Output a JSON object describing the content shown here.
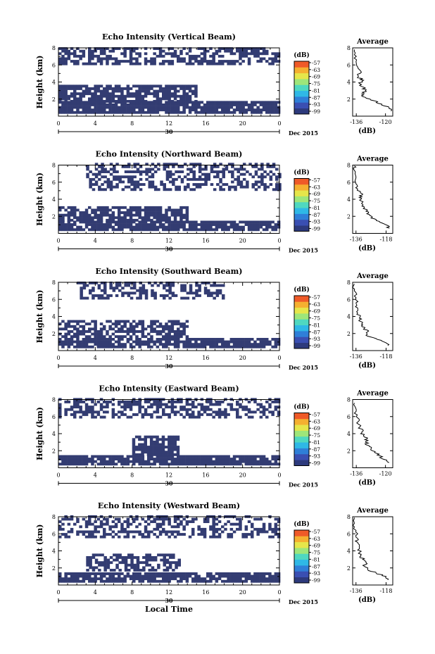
{
  "chart_data": {
    "type": "heatmap",
    "panels": [
      {
        "title": "Echo Intensity (Vertical Beam)",
        "ylabel": "Height (km)",
        "yticks": [
          "2",
          "4",
          "6",
          "8"
        ],
        "xticks": [
          "0",
          "4",
          "8",
          "12",
          "16",
          "20",
          "0"
        ],
        "date_label": "30",
        "month_label": "Dec 2015",
        "colorbar_unit": "(dB)",
        "colorbar_ticks": [
          "-57",
          "-63",
          "-69",
          "-75",
          "-81",
          "-87",
          "-93",
          "-99"
        ],
        "avg_title": "Average",
        "avg_xticks": [
          "-136",
          "-120"
        ],
        "avg_xlabel": "(dB)",
        "avg_yticks": [
          "2",
          "4",
          "6",
          "8"
        ],
        "avg_xlim": [
          -138,
          -116
        ],
        "bands": [
          {
            "start": 0,
            "end": 24,
            "bottom": 0.3,
            "top": 1.6,
            "density": 0.9
          },
          {
            "start": 0,
            "end": 15,
            "bottom": 1.6,
            "top": 3.4,
            "density": 0.8
          },
          {
            "start": 0,
            "end": 24,
            "bottom": 6.0,
            "top": 8.0,
            "density": 0.55
          }
        ],
        "profile": [
          {
            "h": 0.6,
            "db": -117
          },
          {
            "h": 1.0,
            "db": -118
          },
          {
            "h": 1.4,
            "db": -122
          },
          {
            "h": 1.8,
            "db": -126
          },
          {
            "h": 2.2,
            "db": -131
          },
          {
            "h": 2.6,
            "db": -133
          },
          {
            "h": 3.0,
            "db": -131
          },
          {
            "h": 3.4,
            "db": -132
          },
          {
            "h": 3.8,
            "db": -134
          },
          {
            "h": 4.2,
            "db": -132
          },
          {
            "h": 4.6,
            "db": -135
          },
          {
            "h": 5.0,
            "db": -134
          },
          {
            "h": 5.6,
            "db": -135
          },
          {
            "h": 6.2,
            "db": -136
          },
          {
            "h": 7.0,
            "db": -136
          },
          {
            "h": 7.8,
            "db": -137
          }
        ]
      },
      {
        "title": "Echo Intensity (Northward Beam)",
        "ylabel": "Height (km)",
        "yticks": [
          "2",
          "4",
          "6",
          "8"
        ],
        "xticks": [
          "0",
          "4",
          "8",
          "12",
          "16",
          "20",
          "0"
        ],
        "date_label": "30",
        "month_label": "Dec 2015",
        "colorbar_unit": "(dB)",
        "colorbar_ticks": [
          "-57",
          "-63",
          "-69",
          "-75",
          "-81",
          "-87",
          "-93",
          "-99"
        ],
        "avg_title": "Average",
        "avg_xticks": [
          "-136",
          "-118"
        ],
        "avg_xlabel": "(dB)",
        "avg_yticks": [
          "2",
          "4",
          "6",
          "8"
        ],
        "avg_xlim": [
          -138,
          -114
        ],
        "bands": [
          {
            "start": 0,
            "end": 24,
            "bottom": 0.3,
            "top": 1.4,
            "density": 0.85
          },
          {
            "start": 0,
            "end": 14,
            "bottom": 1.4,
            "top": 2.9,
            "density": 0.75
          },
          {
            "start": 3,
            "end": 24,
            "bottom": 5.0,
            "top": 8.0,
            "density": 0.5
          }
        ],
        "profile": [
          {
            "h": 0.6,
            "db": -116
          },
          {
            "h": 1.0,
            "db": -118
          },
          {
            "h": 1.4,
            "db": -122
          },
          {
            "h": 1.8,
            "db": -127
          },
          {
            "h": 2.2,
            "db": -128
          },
          {
            "h": 2.6,
            "db": -130
          },
          {
            "h": 3.0,
            "db": -131
          },
          {
            "h": 3.4,
            "db": -132
          },
          {
            "h": 3.8,
            "db": -133
          },
          {
            "h": 4.2,
            "db": -134
          },
          {
            "h": 4.6,
            "db": -132
          },
          {
            "h": 5.2,
            "db": -135
          },
          {
            "h": 5.8,
            "db": -136
          },
          {
            "h": 6.6,
            "db": -136
          },
          {
            "h": 7.4,
            "db": -137
          },
          {
            "h": 7.9,
            "db": -137
          }
        ]
      },
      {
        "title": "Echo Intensity (Southward Beam)",
        "ylabel": "Height (km)",
        "yticks": [
          "2",
          "4",
          "6",
          "8"
        ],
        "xticks": [
          "0",
          "4",
          "8",
          "12",
          "16",
          "20",
          "0"
        ],
        "date_label": "30",
        "month_label": "Dec 2015",
        "colorbar_unit": "(dB)",
        "colorbar_ticks": [
          "-57",
          "-63",
          "-69",
          "-75",
          "-81",
          "-87",
          "-93",
          "-99"
        ],
        "avg_title": "Average",
        "avg_xticks": [
          "-136",
          "-118"
        ],
        "avg_xlabel": "(dB)",
        "avg_yticks": [
          "2",
          "4",
          "6",
          "8"
        ],
        "avg_xlim": [
          -138,
          -114
        ],
        "bands": [
          {
            "start": 0,
            "end": 24,
            "bottom": 0.3,
            "top": 1.3,
            "density": 0.85
          },
          {
            "start": 0,
            "end": 14,
            "bottom": 1.5,
            "top": 3.3,
            "density": 0.6
          },
          {
            "start": 2,
            "end": 18,
            "bottom": 6.0,
            "top": 8.0,
            "density": 0.5
          }
        ],
        "profile": [
          {
            "h": 0.6,
            "db": -117
          },
          {
            "h": 1.0,
            "db": -119
          },
          {
            "h": 1.4,
            "db": -124
          },
          {
            "h": 1.8,
            "db": -130
          },
          {
            "h": 2.2,
            "db": -129
          },
          {
            "h": 2.6,
            "db": -131
          },
          {
            "h": 3.0,
            "db": -132
          },
          {
            "h": 3.4,
            "db": -133
          },
          {
            "h": 3.8,
            "db": -134
          },
          {
            "h": 4.4,
            "db": -135
          },
          {
            "h": 5.0,
            "db": -135
          },
          {
            "h": 5.6,
            "db": -136
          },
          {
            "h": 6.2,
            "db": -136
          },
          {
            "h": 7.0,
            "db": -137
          },
          {
            "h": 7.8,
            "db": -137
          }
        ]
      },
      {
        "title": "Echo Intensity (Eastward Beam)",
        "ylabel": "Height (km)",
        "yticks": [
          "2",
          "4",
          "6",
          "8"
        ],
        "xticks": [
          "0",
          "4",
          "8",
          "12",
          "16",
          "20",
          "0"
        ],
        "date_label": "30",
        "month_label": "Dec 2015",
        "colorbar_unit": "(dB)",
        "colorbar_ticks": [
          "-57",
          "-63",
          "-69",
          "-75",
          "-81",
          "-87",
          "-93",
          "-99"
        ],
        "avg_title": "Average",
        "avg_xticks": [
          "-136",
          "-120"
        ],
        "avg_xlabel": "(dB)",
        "avg_yticks": [
          "2",
          "4",
          "6",
          "8"
        ],
        "avg_xlim": [
          -138,
          -116
        ],
        "bands": [
          {
            "start": 0,
            "end": 24,
            "bottom": 0.3,
            "top": 1.4,
            "density": 0.9
          },
          {
            "start": 8,
            "end": 13,
            "bottom": 1.4,
            "top": 3.5,
            "density": 0.8
          },
          {
            "start": 0,
            "end": 24,
            "bottom": 5.8,
            "top": 8.0,
            "density": 0.5
          }
        ],
        "profile": [
          {
            "h": 0.6,
            "db": -118
          },
          {
            "h": 1.0,
            "db": -121
          },
          {
            "h": 1.4,
            "db": -123
          },
          {
            "h": 1.8,
            "db": -126
          },
          {
            "h": 2.2,
            "db": -128
          },
          {
            "h": 2.6,
            "db": -129
          },
          {
            "h": 3.0,
            "db": -131
          },
          {
            "h": 3.4,
            "db": -130
          },
          {
            "h": 3.8,
            "db": -132
          },
          {
            "h": 4.2,
            "db": -133
          },
          {
            "h": 4.8,
            "db": -134
          },
          {
            "h": 5.4,
            "db": -135
          },
          {
            "h": 6.0,
            "db": -136
          },
          {
            "h": 6.8,
            "db": -136
          },
          {
            "h": 7.6,
            "db": -137
          }
        ]
      },
      {
        "title": "Echo Intensity (Westward Beam)",
        "ylabel": "Height (km)",
        "yticks": [
          "2",
          "4",
          "6",
          "8"
        ],
        "xticks": [
          "0",
          "4",
          "8",
          "12",
          "16",
          "20",
          "0"
        ],
        "date_label": "30",
        "month_label": "Dec 2015",
        "xlabel": "Local Time",
        "colorbar_unit": "(dB)",
        "colorbar_ticks": [
          "-57",
          "-63",
          "-69",
          "-75",
          "-81",
          "-87",
          "-93",
          "-99"
        ],
        "avg_title": "Average",
        "avg_xticks": [
          "-136",
          "-118"
        ],
        "avg_xlabel": "(dB)",
        "avg_yticks": [
          "2",
          "4",
          "6",
          "8"
        ],
        "avg_xlim": [
          -138,
          -114
        ],
        "bands": [
          {
            "start": 0,
            "end": 24,
            "bottom": 0.3,
            "top": 1.4,
            "density": 0.85
          },
          {
            "start": 3,
            "end": 13,
            "bottom": 1.6,
            "top": 3.4,
            "density": 0.6
          },
          {
            "start": 0,
            "end": 24,
            "bottom": 5.5,
            "top": 8.0,
            "density": 0.45
          }
        ],
        "profile": [
          {
            "h": 0.6,
            "db": -117
          },
          {
            "h": 1.0,
            "db": -118
          },
          {
            "h": 1.4,
            "db": -124
          },
          {
            "h": 1.8,
            "db": -129
          },
          {
            "h": 2.2,
            "db": -131
          },
          {
            "h": 2.6,
            "db": -130
          },
          {
            "h": 3.0,
            "db": -132
          },
          {
            "h": 3.4,
            "db": -133
          },
          {
            "h": 3.8,
            "db": -134
          },
          {
            "h": 4.4,
            "db": -134
          },
          {
            "h": 5.0,
            "db": -135
          },
          {
            "h": 5.6,
            "db": -136
          },
          {
            "h": 6.4,
            "db": -136
          },
          {
            "h": 7.2,
            "db": -137
          },
          {
            "h": 7.9,
            "db": -137
          }
        ]
      }
    ],
    "ylim": [
      0,
      8
    ],
    "xlim": [
      0,
      24
    ],
    "colormap": [
      "#2d3a7c",
      "#3a4fb2",
      "#2f7fd8",
      "#2fb8e6",
      "#4fd8c0",
      "#9ee67a",
      "#e6e64a",
      "#f5b030",
      "#ef5a28"
    ],
    "fill_color": "#333c72"
  }
}
